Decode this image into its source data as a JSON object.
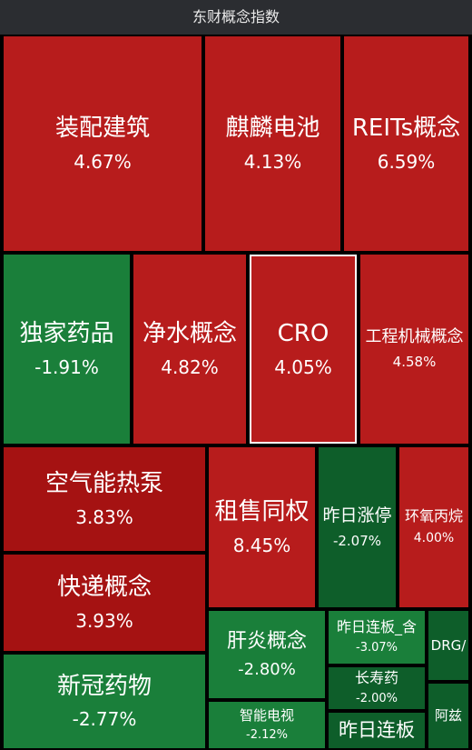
{
  "title": "东财概念指数",
  "colors": {
    "up": "#b71c1c",
    "up_dark": "#a51212",
    "down": "#1a7f3a",
    "down_dark": "#0e5e2a",
    "selected_border": "#ffffff",
    "title_bg": "#2b2d31"
  },
  "chart_data": {
    "type": "treemap",
    "items": [
      {
        "name": "装配建筑",
        "change": "4.67%",
        "value": 4.67
      },
      {
        "name": "麒麟电池",
        "change": "4.13%",
        "value": 4.13
      },
      {
        "name": "REITs概念",
        "change": "6.59%",
        "value": 6.59
      },
      {
        "name": "独家药品",
        "change": "-1.91%",
        "value": -1.91
      },
      {
        "name": "净水概念",
        "change": "4.82%",
        "value": 4.82
      },
      {
        "name": "CRO",
        "change": "4.05%",
        "value": 4.05,
        "selected": true
      },
      {
        "name": "工程机械概念",
        "change": "4.58%",
        "value": 4.58
      },
      {
        "name": "空气能热泵",
        "change": "3.83%",
        "value": 3.83
      },
      {
        "name": "快递概念",
        "change": "3.93%",
        "value": 3.93
      },
      {
        "name": "租售同权",
        "change": "8.45%",
        "value": 8.45
      },
      {
        "name": "昨日涨停",
        "change": "-2.07%",
        "value": -2.07
      },
      {
        "name": "环氧丙烷",
        "change": "4.00%",
        "value": 4.0
      },
      {
        "name": "新冠药物",
        "change": "-2.77%",
        "value": -2.77
      },
      {
        "name": "肝炎概念",
        "change": "-2.80%",
        "value": -2.8
      },
      {
        "name": "昨日连板_含",
        "change": "-3.07%",
        "value": -3.07
      },
      {
        "name": "DRG/",
        "change": "",
        "value": null
      },
      {
        "name": "长寿药",
        "change": "-2.00%",
        "value": -2.0
      },
      {
        "name": "智能电视",
        "change": "-2.12%",
        "value": -2.12
      },
      {
        "name": "阿兹",
        "change": "",
        "value": null
      },
      {
        "name": "昨日连板",
        "change": "",
        "value": null
      }
    ]
  }
}
